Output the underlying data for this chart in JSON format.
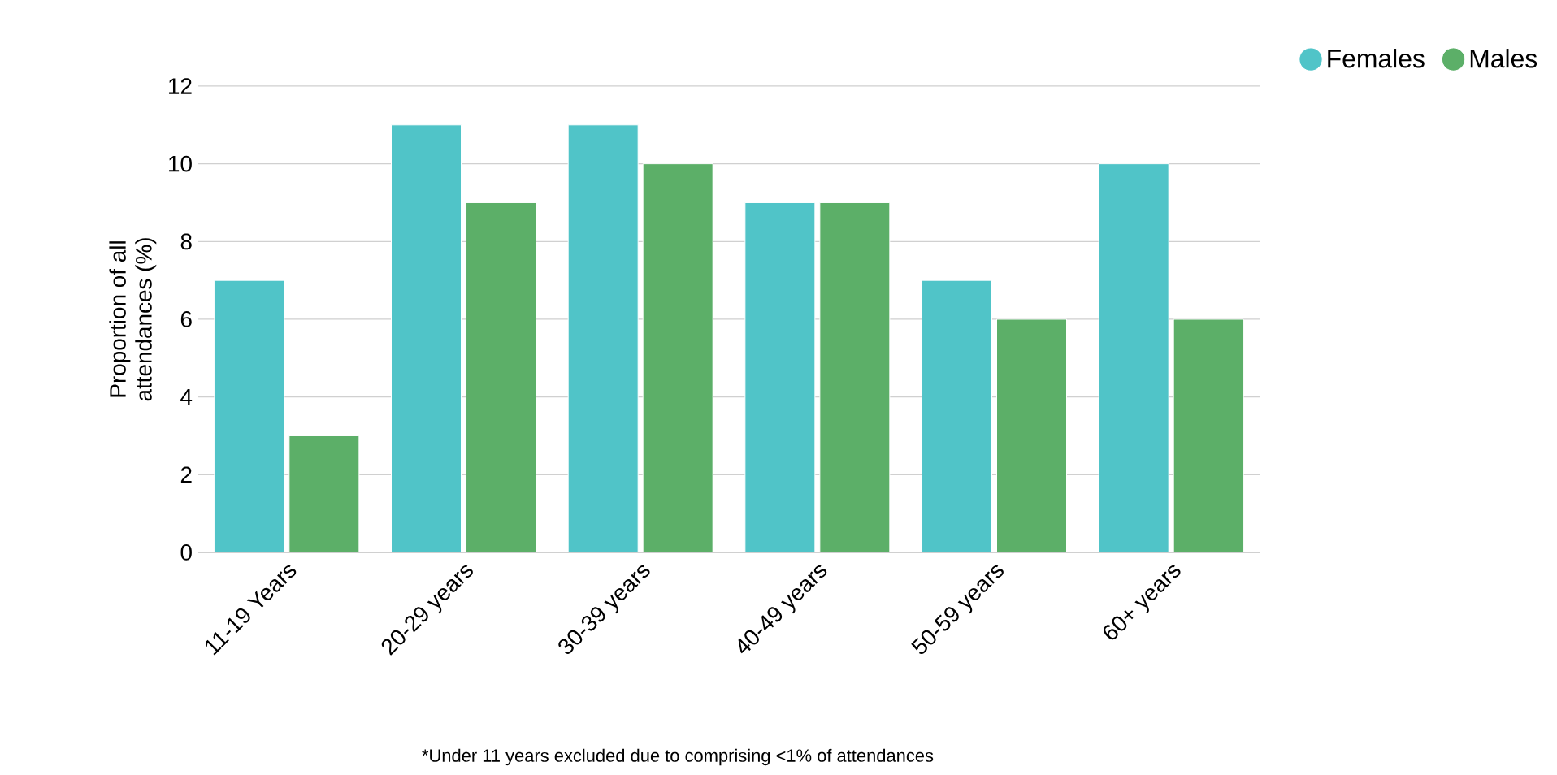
{
  "chart_data": {
    "type": "bar",
    "ylabel": "Proportion of all attendances (%)",
    "categories": [
      "11-19 Years",
      "20-29 years",
      "30-39 years",
      "40-49 years",
      "50-59 years",
      "60+ years"
    ],
    "series": [
      {
        "name": "Females",
        "color": "#50c4c8",
        "values": [
          7,
          11,
          11,
          9,
          7,
          10
        ]
      },
      {
        "name": "Males",
        "color": "#5caf68",
        "values": [
          3,
          9,
          10,
          9,
          6,
          6
        ]
      }
    ],
    "ylim": [
      0,
      12
    ],
    "yticks": [
      0,
      2,
      4,
      6,
      8,
      10,
      12
    ],
    "grid": "y",
    "legend": "top right",
    "annotations": [
      "*Under 11 years excluded due to comprising <1% of attendances"
    ]
  }
}
